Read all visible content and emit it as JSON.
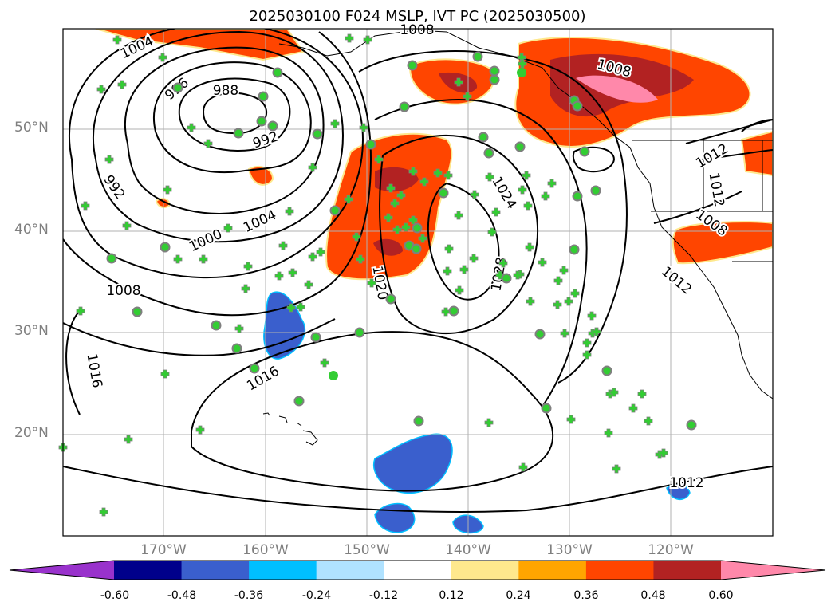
{
  "title": "2025030100 F024 MSLP, IVT PC (2025030500)",
  "lat_labels": [
    "50°N",
    "40°N",
    "30°N",
    "20°N"
  ],
  "lon_labels": [
    "170°W",
    "160°W",
    "150°W",
    "140°W",
    "130°W",
    "120°W"
  ],
  "contour_labels": [
    "1004",
    "996",
    "988",
    "992",
    "992",
    "1000",
    "1004",
    "1008",
    "1016",
    "1016",
    "1020",
    "1024",
    "1028",
    "1008",
    "1008",
    "1012",
    "1012",
    "1008",
    "1012",
    "1012"
  ],
  "colorbar": {
    "ticks": [
      "-0.60",
      "-0.48",
      "-0.36",
      "-0.24",
      "-0.12",
      "0.12",
      "0.24",
      "0.36",
      "0.48",
      "0.60"
    ],
    "colors": [
      "#9932cc",
      "#00008b",
      "#3a5fcd",
      "#00bfff",
      "#b0e2ff",
      "#ffffff",
      "#fee88d",
      "#ffa500",
      "#ff4500",
      "#b22222",
      "#ff88aa"
    ]
  },
  "colors": {
    "station_marker": "#32cd32",
    "station_edge": "#7f7f7f",
    "contour": "#000000",
    "grid": "#b0b0b0"
  }
}
